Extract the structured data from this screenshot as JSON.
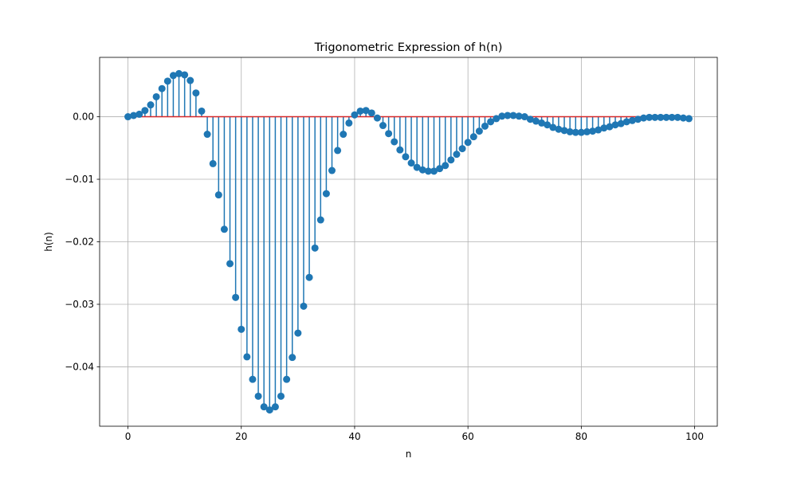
{
  "chart_data": {
    "type": "stem",
    "title": "Trigonometric Expression of h(n)",
    "xlabel": "n",
    "ylabel": "h(n)",
    "xlim": [
      -5,
      104
    ],
    "ylim": [
      -0.0495,
      0.0095
    ],
    "xticks": [
      {
        "value": 0,
        "label": "0"
      },
      {
        "value": 20,
        "label": "20"
      },
      {
        "value": 40,
        "label": "40"
      },
      {
        "value": 60,
        "label": "60"
      },
      {
        "value": 80,
        "label": "80"
      },
      {
        "value": 100,
        "label": "100"
      }
    ],
    "yticks": [
      {
        "value": 0.0,
        "label": "0.00"
      },
      {
        "value": -0.01,
        "label": "−0.01"
      },
      {
        "value": -0.02,
        "label": "−0.02"
      },
      {
        "value": -0.03,
        "label": "−0.03"
      },
      {
        "value": -0.04,
        "label": "−0.04"
      }
    ],
    "grid": true,
    "colors": {
      "stem": "#1f77b4",
      "marker": "#1f77b4",
      "baseline": "#d62728",
      "grid": "#b0b0b0"
    },
    "x": [
      0,
      1,
      2,
      3,
      4,
      5,
      6,
      7,
      8,
      9,
      10,
      11,
      12,
      13,
      14,
      15,
      16,
      17,
      18,
      19,
      20,
      21,
      22,
      23,
      24,
      25,
      26,
      27,
      28,
      29,
      30,
      31,
      32,
      33,
      34,
      35,
      36,
      37,
      38,
      39,
      40,
      41,
      42,
      43,
      44,
      45,
      46,
      47,
      48,
      49,
      50,
      51,
      52,
      53,
      54,
      55,
      56,
      57,
      58,
      59,
      60,
      61,
      62,
      63,
      64,
      65,
      66,
      67,
      68,
      69,
      70,
      71,
      72,
      73,
      74,
      75,
      76,
      77,
      78,
      79,
      80,
      81,
      82,
      83,
      84,
      85,
      86,
      87,
      88,
      89,
      90,
      91,
      92,
      93,
      94,
      95,
      96,
      97,
      98,
      99
    ],
    "values": [
      0.0,
      0.0002,
      0.0004,
      0.001,
      0.0019,
      0.0032,
      0.0045,
      0.0057,
      0.0066,
      0.0069,
      0.0067,
      0.0058,
      0.0038,
      0.0009,
      -0.0028,
      -0.0075,
      -0.0125,
      -0.018,
      -0.0235,
      -0.0289,
      -0.034,
      -0.0384,
      -0.042,
      -0.0447,
      -0.0464,
      -0.0469,
      -0.0464,
      -0.0447,
      -0.042,
      -0.0385,
      -0.0346,
      -0.0303,
      -0.0257,
      -0.021,
      -0.0165,
      -0.0123,
      -0.0086,
      -0.0054,
      -0.0028,
      -0.001,
      0.0003,
      0.0009,
      0.001,
      0.0006,
      -0.0002,
      -0.0014,
      -0.0027,
      -0.004,
      -0.0053,
      -0.0064,
      -0.0074,
      -0.0081,
      -0.0085,
      -0.0087,
      -0.0087,
      -0.0083,
      -0.0078,
      -0.0069,
      -0.006,
      -0.0051,
      -0.0041,
      -0.0032,
      -0.0023,
      -0.0015,
      -0.0008,
      -0.0003,
      0.0001,
      0.0002,
      0.0002,
      0.0001,
      0.0,
      -0.0004,
      -0.0007,
      -0.001,
      -0.0013,
      -0.0017,
      -0.002,
      -0.0022,
      -0.0024,
      -0.0025,
      -0.0025,
      -0.0024,
      -0.0023,
      -0.0021,
      -0.0018,
      -0.0016,
      -0.0013,
      -0.0011,
      -0.0008,
      -0.0006,
      -0.0004,
      -0.0002,
      -0.0001,
      -0.0001,
      -0.0001,
      -0.0001,
      -0.0001,
      -0.0001,
      -0.0002,
      -0.0003
    ]
  }
}
